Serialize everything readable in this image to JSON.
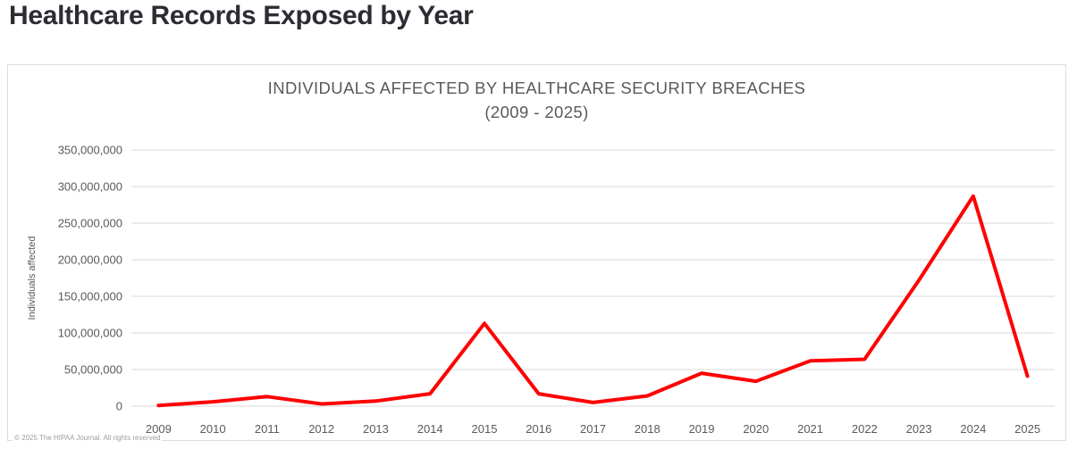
{
  "page": {
    "title": "Healthcare Records Exposed by Year"
  },
  "card": {
    "copyright": "© 2025 The HIPAA Journal. All rights reserved"
  },
  "chart_data": {
    "type": "line",
    "title": "INDIVIDUALS AFFECTED BY HEALTHCARE SECURITY BREACHES",
    "subtitle": "(2009 - 2025)",
    "xlabel": "",
    "ylabel": "Individuals affected",
    "categories": [
      "2009",
      "2010",
      "2011",
      "2012",
      "2013",
      "2014",
      "2015",
      "2016",
      "2017",
      "2018",
      "2019",
      "2020",
      "2021",
      "2022",
      "2023",
      "2024",
      "2025"
    ],
    "series": [
      {
        "name": "Individuals affected",
        "values": [
          1000000,
          6000000,
          13000000,
          3000000,
          7000000,
          17000000,
          113000000,
          17000000,
          5000000,
          14000000,
          45000000,
          34000000,
          62000000,
          64000000,
          172000000,
          287000000,
          41000000
        ]
      }
    ],
    "ylim": [
      0,
      350000000
    ],
    "yticks": [
      {
        "value": 0,
        "label": "0"
      },
      {
        "value": 50000000,
        "label": "50,000,000"
      },
      {
        "value": 100000000,
        "label": "100,000,000"
      },
      {
        "value": 150000000,
        "label": "150,000,000"
      },
      {
        "value": 200000000,
        "label": "200,000,000"
      },
      {
        "value": 250000000,
        "label": "250,000,000"
      },
      {
        "value": 300000000,
        "label": "300,000,000"
      },
      {
        "value": 350000000,
        "label": "350,000,000"
      }
    ],
    "grid": true,
    "legend": false,
    "colors": {
      "line": "#fe0000",
      "grid": "#d9d9d9",
      "text": "#595959",
      "title": "#595959"
    }
  }
}
